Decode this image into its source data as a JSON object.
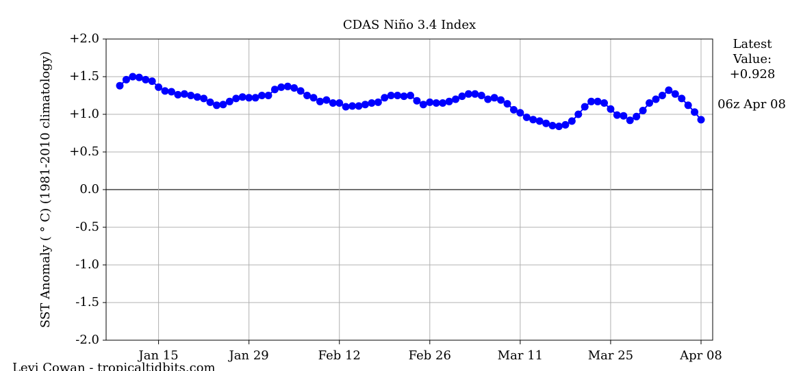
{
  "chart_data": {
    "type": "line",
    "title": "CDAS Niño 3.4 Index",
    "y_label": "SST Anomaly ( ° C) (1981-2010 climatology)",
    "annotations": [
      "Latest",
      "Value:",
      "+0.928",
      "06z Apr 08"
    ],
    "credit": "Levi Cowan - tropicaltidbits.com",
    "categories": [
      null,
      null,
      null,
      null,
      null,
      null,
      "Jan 15",
      null,
      null,
      null,
      null,
      null,
      null,
      null,
      null,
      null,
      null,
      null,
      null,
      null,
      "Jan 29",
      null,
      null,
      null,
      null,
      null,
      null,
      null,
      null,
      null,
      null,
      null,
      null,
      null,
      "Feb 12",
      null,
      null,
      null,
      null,
      null,
      null,
      null,
      null,
      null,
      null,
      null,
      null,
      null,
      "Feb 26",
      null,
      null,
      null,
      null,
      null,
      null,
      null,
      null,
      null,
      null,
      null,
      null,
      null,
      "Mar 11",
      null,
      null,
      null,
      null,
      null,
      null,
      null,
      null,
      null,
      null,
      null,
      null,
      null,
      "Mar 25",
      null,
      null,
      null,
      null,
      null,
      null,
      null,
      null,
      null,
      null,
      null,
      null,
      null,
      "Apr 08"
    ],
    "series": [
      {
        "color": "#0000ff",
        "values": [
          1.38,
          1.46,
          1.5,
          1.49,
          1.46,
          1.44,
          1.36,
          1.31,
          1.3,
          1.26,
          1.27,
          1.25,
          1.23,
          1.21,
          1.16,
          1.12,
          1.13,
          1.17,
          1.21,
          1.23,
          1.22,
          1.22,
          1.25,
          1.25,
          1.33,
          1.36,
          1.37,
          1.35,
          1.31,
          1.25,
          1.22,
          1.17,
          1.19,
          1.15,
          1.15,
          1.1,
          1.11,
          1.11,
          1.13,
          1.15,
          1.16,
          1.22,
          1.25,
          1.25,
          1.24,
          1.25,
          1.18,
          1.13,
          1.16,
          1.15,
          1.15,
          1.17,
          1.2,
          1.24,
          1.27,
          1.27,
          1.25,
          1.2,
          1.22,
          1.19,
          1.14,
          1.06,
          1.02,
          0.96,
          0.93,
          0.91,
          0.88,
          0.85,
          0.84,
          0.86,
          0.91,
          1.0,
          1.1,
          1.17,
          1.17,
          1.15,
          1.07,
          0.99,
          0.98,
          0.92,
          0.97,
          1.05,
          1.15,
          1.2,
          1.25,
          1.32,
          1.27,
          1.21,
          1.12,
          1.03,
          0.928
        ]
      }
    ],
    "ylim": [
      -2,
      2
    ],
    "yticks": [
      {
        "value": 2,
        "label": "+2.0"
      },
      {
        "value": 1.5,
        "label": "+1.5"
      },
      {
        "value": 1,
        "label": "+1.0"
      },
      {
        "value": 0.5,
        "label": "+0.5"
      },
      {
        "value": 0,
        "label": "0.0"
      },
      {
        "value": -0.5,
        "label": "-0.5"
      },
      {
        "value": -1,
        "label": "-1.0"
      },
      {
        "value": -1.5,
        "label": "-1.5"
      },
      {
        "value": -2,
        "label": "-2.0"
      }
    ],
    "grid": true
  }
}
